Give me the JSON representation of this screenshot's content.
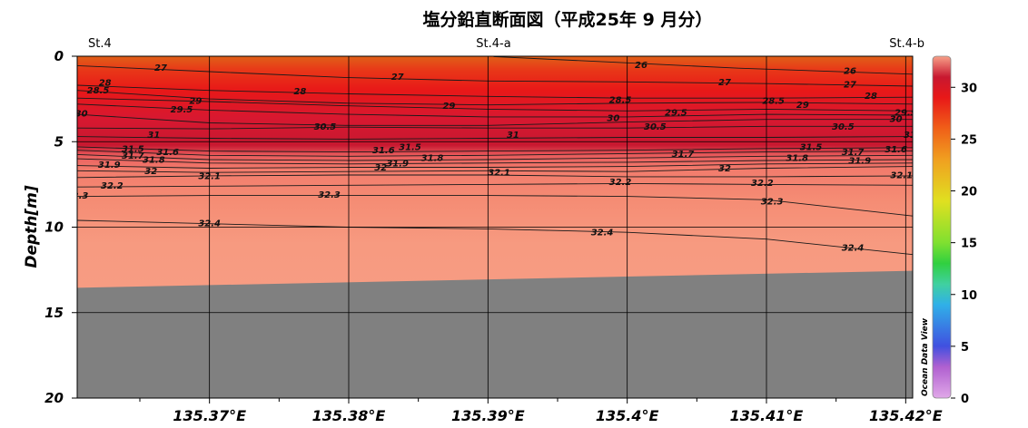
{
  "chart_data": {
    "type": "heatmap",
    "title": "塩分鉛直断面図（平成25年 9 月分）",
    "ylabel": "Depth[m]",
    "xlim": [
      135.3605,
      135.4205
    ],
    "ylim": [
      0,
      20
    ],
    "x_ticks": [
      {
        "value": 135.37,
        "label": "135.37°E"
      },
      {
        "value": 135.38,
        "label": "135.38°E"
      },
      {
        "value": 135.39,
        "label": "135.39°E"
      },
      {
        "value": 135.4,
        "label": "135.4°E"
      },
      {
        "value": 135.41,
        "label": "135.41°E"
      },
      {
        "value": 135.42,
        "label": "135.42°E"
      }
    ],
    "y_ticks": [
      {
        "value": 0,
        "label": "0"
      },
      {
        "value": 5,
        "label": "5"
      },
      {
        "value": 10,
        "label": "10"
      },
      {
        "value": 15,
        "label": "15"
      },
      {
        "value": 20,
        "label": "20"
      }
    ],
    "stations": [
      {
        "name": "St.4",
        "lon": 135.3605
      },
      {
        "name": "St.4-a",
        "lon": 135.3904
      },
      {
        "name": "St.4-b",
        "lon": 135.4205
      }
    ],
    "colorbar": {
      "min": 0,
      "max": 33,
      "ticks": [
        "0",
        "5",
        "10",
        "15",
        "20",
        "25",
        "30"
      ],
      "tick_values": [
        0,
        5,
        10,
        15,
        20,
        25,
        30
      ],
      "colors": [
        "#e0a8e8",
        "#b060d0",
        "#4050e0",
        "#30b0e8",
        "#40d0a0",
        "#30d040",
        "#80e030",
        "#e0e020",
        "#f0a020",
        "#f06018",
        "#e81818",
        "#c81830",
        "#f7a088"
      ],
      "stops": [
        0,
        3,
        5,
        9,
        11,
        13,
        15,
        19,
        23,
        26,
        29,
        31,
        33
      ],
      "label": "Ocean Data View"
    },
    "bottom": {
      "color": "#808080",
      "depth_left": 13.55,
      "depth_right": 12.55
    },
    "contours": [
      {
        "value": 26,
        "label": "26",
        "points": [
          [
            135.3904,
            0.02
          ],
          [
            135.399,
            0.35
          ],
          [
            135.408,
            0.7
          ],
          [
            135.4205,
            1.05
          ]
        ],
        "labels": [
          {
            "lon": 135.401,
            "depth": 0.5
          },
          {
            "lon": 135.416,
            "depth": 0.85
          }
        ]
      },
      {
        "value": 27,
        "label": "27",
        "points": [
          [
            135.3605,
            0.55
          ],
          [
            135.37,
            0.9
          ],
          [
            135.38,
            1.25
          ],
          [
            135.39,
            1.45
          ],
          [
            135.4,
            1.5
          ],
          [
            135.41,
            1.6
          ],
          [
            135.4205,
            1.75
          ]
        ],
        "labels": [
          {
            "lon": 135.3665,
            "depth": 0.65
          },
          {
            "lon": 135.3835,
            "depth": 1.2
          },
          {
            "lon": 135.407,
            "depth": 1.5
          },
          {
            "lon": 135.416,
            "depth": 1.65
          }
        ]
      },
      {
        "value": 28,
        "label": "28",
        "points": [
          [
            135.3605,
            1.7
          ],
          [
            135.37,
            2.0
          ],
          [
            135.38,
            2.2
          ],
          [
            135.39,
            2.35
          ],
          [
            135.4,
            2.45
          ],
          [
            135.41,
            2.45
          ],
          [
            135.4205,
            2.4
          ]
        ],
        "labels": [
          {
            "lon": 135.3625,
            "depth": 1.55
          },
          {
            "lon": 135.3765,
            "depth": 2.05
          },
          {
            "lon": 135.4175,
            "depth": 2.3
          }
        ]
      },
      {
        "value": 28.5,
        "label": "28.5",
        "points": [
          [
            135.3605,
            2.0
          ],
          [
            135.37,
            2.5
          ],
          [
            135.38,
            2.75
          ],
          [
            135.39,
            2.85
          ],
          [
            135.4,
            2.75
          ],
          [
            135.41,
            2.7
          ],
          [
            135.4205,
            2.8
          ]
        ],
        "labels": [
          {
            "lon": 135.362,
            "depth": 2.0
          },
          {
            "lon": 135.3995,
            "depth": 2.55
          },
          {
            "lon": 135.4105,
            "depth": 2.6
          }
        ]
      },
      {
        "value": 29,
        "label": "29",
        "points": [
          [
            135.3605,
            2.45
          ],
          [
            135.37,
            2.65
          ],
          [
            135.38,
            2.9
          ],
          [
            135.39,
            3.1
          ],
          [
            135.4,
            3.2
          ],
          [
            135.41,
            3.1
          ],
          [
            135.4205,
            3.2
          ]
        ],
        "labels": [
          {
            "lon": 135.369,
            "depth": 2.6
          },
          {
            "lon": 135.3872,
            "depth": 2.9
          },
          {
            "lon": 135.4126,
            "depth": 2.85
          }
        ]
      },
      {
        "value": 29.5,
        "label": "29.5",
        "points": [
          [
            135.3605,
            2.8
          ],
          [
            135.37,
            3.15
          ],
          [
            135.38,
            3.4
          ],
          [
            135.39,
            3.55
          ],
          [
            135.4,
            3.55
          ],
          [
            135.41,
            3.4
          ],
          [
            135.4205,
            3.45
          ]
        ],
        "labels": [
          {
            "lon": 135.368,
            "depth": 3.1
          },
          {
            "lon": 135.4035,
            "depth": 3.3
          },
          {
            "lon": 135.42,
            "depth": 3.3
          }
        ]
      },
      {
        "value": 30,
        "label": "30",
        "points": [
          [
            135.3605,
            3.4
          ],
          [
            135.37,
            3.9
          ],
          [
            135.38,
            4.05
          ],
          [
            135.39,
            4.05
          ],
          [
            135.4,
            3.85
          ],
          [
            135.41,
            3.7
          ],
          [
            135.4205,
            3.7
          ]
        ],
        "labels": [
          {
            "lon": 135.3608,
            "depth": 3.35
          },
          {
            "lon": 135.399,
            "depth": 3.6
          },
          {
            "lon": 135.4193,
            "depth": 3.65
          }
        ]
      },
      {
        "value": 30.5,
        "label": "30.5",
        "points": [
          [
            135.3605,
            4.2
          ],
          [
            135.37,
            4.25
          ],
          [
            135.38,
            4.15
          ],
          [
            135.39,
            4.2
          ],
          [
            135.4,
            4.2
          ],
          [
            135.41,
            4.1
          ],
          [
            135.4205,
            4.1
          ]
        ],
        "labels": [
          {
            "lon": 135.3783,
            "depth": 4.1
          },
          {
            "lon": 135.402,
            "depth": 4.1
          },
          {
            "lon": 135.4155,
            "depth": 4.1
          }
        ]
      },
      {
        "value": 31,
        "label": "31",
        "points": [
          [
            135.3605,
            4.7
          ],
          [
            135.37,
            4.8
          ],
          [
            135.38,
            4.85
          ],
          [
            135.39,
            4.8
          ],
          [
            135.4,
            4.75
          ],
          [
            135.41,
            4.75
          ],
          [
            135.4205,
            4.7
          ]
        ],
        "labels": [
          {
            "lon": 135.366,
            "depth": 4.6
          },
          {
            "lon": 135.3918,
            "depth": 4.6
          },
          {
            "lon": 135.4203,
            "depth": 4.6
          }
        ]
      },
      {
        "value": 31.5,
        "label": "31.5",
        "points": [
          [
            135.3605,
            5.3
          ],
          [
            135.37,
            5.55
          ],
          [
            135.38,
            5.6
          ],
          [
            135.39,
            5.55
          ],
          [
            135.4,
            5.5
          ],
          [
            135.41,
            5.4
          ],
          [
            135.4205,
            5.35
          ]
        ],
        "labels": [
          {
            "lon": 135.3645,
            "depth": 5.4
          },
          {
            "lon": 135.3844,
            "depth": 5.3
          },
          {
            "lon": 135.4132,
            "depth": 5.3
          }
        ]
      },
      {
        "value": 31.6,
        "label": "31.6",
        "points": [
          [
            135.3605,
            5.5
          ],
          [
            135.37,
            5.8
          ],
          [
            135.38,
            5.85
          ],
          [
            135.39,
            5.8
          ],
          [
            135.4,
            5.7
          ],
          [
            135.41,
            5.6
          ],
          [
            135.4205,
            5.55
          ]
        ],
        "labels": [
          {
            "lon": 135.367,
            "depth": 5.6
          },
          {
            "lon": 135.3825,
            "depth": 5.5
          },
          {
            "lon": 135.4193,
            "depth": 5.45
          }
        ]
      },
      {
        "value": 31.7,
        "label": "31.7",
        "points": [
          [
            135.3605,
            5.75
          ],
          [
            135.37,
            6.05
          ],
          [
            135.38,
            6.1
          ],
          [
            135.39,
            6.05
          ],
          [
            135.4,
            5.95
          ],
          [
            135.41,
            5.85
          ],
          [
            135.4205,
            5.8
          ]
        ],
        "labels": [
          {
            "lon": 135.3645,
            "depth": 5.8
          },
          {
            "lon": 135.404,
            "depth": 5.7
          },
          {
            "lon": 135.4162,
            "depth": 5.6
          }
        ]
      },
      {
        "value": 31.8,
        "label": "31.8",
        "points": [
          [
            135.3605,
            6.0
          ],
          [
            135.37,
            6.25
          ],
          [
            135.38,
            6.3
          ],
          [
            135.39,
            6.25
          ],
          [
            135.4,
            6.2
          ],
          [
            135.41,
            6.1
          ],
          [
            135.4205,
            6.05
          ]
        ],
        "labels": [
          {
            "lon": 135.366,
            "depth": 6.05
          },
          {
            "lon": 135.386,
            "depth": 5.95
          },
          {
            "lon": 135.4122,
            "depth": 5.95
          }
        ]
      },
      {
        "value": 31.9,
        "label": "31.9",
        "points": [
          [
            135.3605,
            6.4
          ],
          [
            135.37,
            6.55
          ],
          [
            135.38,
            6.5
          ],
          [
            135.39,
            6.5
          ],
          [
            135.4,
            6.45
          ],
          [
            135.41,
            6.3
          ],
          [
            135.4205,
            6.25
          ]
        ],
        "labels": [
          {
            "lon": 135.3628,
            "depth": 6.35
          },
          {
            "lon": 135.3835,
            "depth": 6.25
          },
          {
            "lon": 135.4167,
            "depth": 6.1
          }
        ]
      },
      {
        "value": 32,
        "label": "32",
        "points": [
          [
            135.3605,
            6.7
          ],
          [
            135.37,
            6.8
          ],
          [
            135.38,
            6.75
          ],
          [
            135.39,
            6.7
          ],
          [
            135.4,
            6.75
          ],
          [
            135.41,
            6.55
          ],
          [
            135.4205,
            6.45
          ]
        ],
        "labels": [
          {
            "lon": 135.3658,
            "depth": 6.7
          },
          {
            "lon": 135.3823,
            "depth": 6.5
          },
          {
            "lon": 135.407,
            "depth": 6.55
          }
        ]
      },
      {
        "value": 32.1,
        "label": "32.1",
        "points": [
          [
            135.3605,
            7.1
          ],
          [
            135.37,
            7.0
          ],
          [
            135.38,
            6.95
          ],
          [
            135.39,
            6.95
          ],
          [
            135.4,
            7.05
          ],
          [
            135.41,
            7.05
          ],
          [
            135.4205,
            7.0
          ]
        ],
        "labels": [
          {
            "lon": 135.37,
            "depth": 7.0
          },
          {
            "lon": 135.3908,
            "depth": 6.8
          },
          {
            "lon": 135.4197,
            "depth": 6.95
          }
        ]
      },
      {
        "value": 32.2,
        "label": "32.2",
        "points": [
          [
            135.3605,
            7.65
          ],
          [
            135.37,
            7.6
          ],
          [
            135.38,
            7.55
          ],
          [
            135.39,
            7.5
          ],
          [
            135.4,
            7.45
          ],
          [
            135.41,
            7.5
          ],
          [
            135.4205,
            7.55
          ]
        ],
        "labels": [
          {
            "lon": 135.363,
            "depth": 7.55
          },
          {
            "lon": 135.3995,
            "depth": 7.35
          },
          {
            "lon": 135.4097,
            "depth": 7.4
          }
        ]
      },
      {
        "value": 32.3,
        "label": "32.3",
        "points": [
          [
            135.3605,
            8.2
          ],
          [
            135.37,
            8.15
          ],
          [
            135.38,
            8.15
          ],
          [
            135.39,
            8.15
          ],
          [
            135.4,
            8.2
          ],
          [
            135.41,
            8.4
          ],
          [
            135.4205,
            9.35
          ]
        ],
        "labels": [
          {
            "lon": 135.3605,
            "depth": 8.15
          },
          {
            "lon": 135.3786,
            "depth": 8.1
          },
          {
            "lon": 135.4104,
            "depth": 8.5
          }
        ]
      },
      {
        "value": 32.4,
        "label": "32.4",
        "points": [
          [
            135.3605,
            9.6
          ],
          [
            135.37,
            9.8
          ],
          [
            135.38,
            10.0
          ],
          [
            135.39,
            10.1
          ],
          [
            135.4,
            10.3
          ],
          [
            135.41,
            10.7
          ],
          [
            135.4205,
            11.6
          ]
        ],
        "labels": [
          {
            "lon": 135.37,
            "depth": 9.75
          },
          {
            "lon": 135.3982,
            "depth": 10.3
          },
          {
            "lon": 135.4162,
            "depth": 11.2
          }
        ]
      }
    ]
  }
}
